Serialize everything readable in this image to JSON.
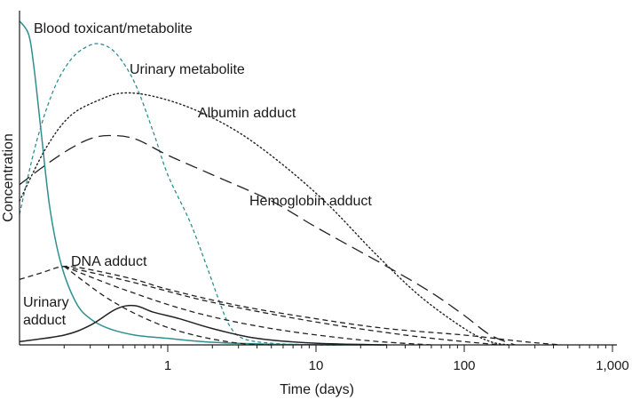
{
  "chart_data": {
    "type": "line",
    "xlabel": "Time (days)",
    "ylabel": "Concentration",
    "x_scale": "log",
    "xlim": [
      0.1,
      1000
    ],
    "ylim": [
      0,
      100
    ],
    "x_ticks": [
      {
        "value": 1,
        "label": "1"
      },
      {
        "value": 10,
        "label": "10"
      },
      {
        "value": 100,
        "label": "100"
      },
      {
        "value": 1000,
        "label": "1,000"
      }
    ],
    "grid": false,
    "legend": "none",
    "series": [
      {
        "name": "Blood toxicant/metabolite",
        "color": "#2f8f8f",
        "dash": "solid",
        "points": [
          [
            0.1,
            99
          ],
          [
            0.115,
            95
          ],
          [
            0.125,
            85
          ],
          [
            0.14,
            65
          ],
          [
            0.16,
            42
          ],
          [
            0.19,
            25
          ],
          [
            0.24,
            13
          ],
          [
            0.3,
            8
          ],
          [
            0.4,
            5
          ],
          [
            0.6,
            3
          ],
          [
            1.0,
            2
          ],
          [
            2.0,
            0.8
          ],
          [
            5.0,
            0.2
          ],
          [
            15.0,
            0
          ],
          [
            30.0,
            0
          ]
        ]
      },
      {
        "name": "Urinary metabolite",
        "color": "#2f8f8f",
        "dash": "short",
        "points": [
          [
            0.1,
            40
          ],
          [
            0.13,
            62
          ],
          [
            0.17,
            78
          ],
          [
            0.22,
            87
          ],
          [
            0.28,
            91
          ],
          [
            0.35,
            92
          ],
          [
            0.45,
            89
          ],
          [
            0.6,
            80
          ],
          [
            0.8,
            65
          ],
          [
            1.0,
            52
          ],
          [
            1.4,
            38
          ],
          [
            1.8,
            25
          ],
          [
            2.2,
            14
          ],
          [
            2.6,
            6
          ],
          [
            3.2,
            2
          ],
          [
            5.0,
            0.5
          ],
          [
            10.0,
            0
          ],
          [
            15.0,
            0
          ]
        ]
      },
      {
        "name": "Albumin adduct",
        "color": "#222222",
        "dash": "dot",
        "points": [
          [
            0.1,
            44
          ],
          [
            0.15,
            60
          ],
          [
            0.22,
            70
          ],
          [
            0.35,
            75
          ],
          [
            0.5,
            77
          ],
          [
            0.8,
            76
          ],
          [
            1.5,
            72
          ],
          [
            3.0,
            65
          ],
          [
            6.0,
            55
          ],
          [
            12.0,
            43
          ],
          [
            25.0,
            28
          ],
          [
            50.0,
            15
          ],
          [
            100.0,
            5
          ],
          [
            150.0,
            1
          ],
          [
            200.0,
            0
          ]
        ]
      },
      {
        "name": "Hemoglobin adduct",
        "color": "#222222",
        "dash": "long",
        "points": [
          [
            0.1,
            49
          ],
          [
            0.15,
            55
          ],
          [
            0.22,
            60
          ],
          [
            0.3,
            63
          ],
          [
            0.4,
            64
          ],
          [
            0.6,
            63
          ],
          [
            1.0,
            58
          ],
          [
            2.0,
            52
          ],
          [
            5.0,
            44
          ],
          [
            10.0,
            36
          ],
          [
            30.0,
            24
          ],
          [
            60.0,
            16
          ],
          [
            100.0,
            9
          ],
          [
            150.0,
            3
          ],
          [
            220.0,
            0
          ]
        ]
      },
      {
        "name": "DNA adduct",
        "color": "#222222",
        "dash": "medium",
        "points": [
          [
            0.1,
            20
          ],
          [
            0.14,
            22
          ],
          [
            0.2,
            24
          ],
          [
            0.3,
            23
          ],
          [
            0.6,
            20
          ],
          [
            1.0,
            17
          ],
          [
            3.0,
            12
          ],
          [
            10.0,
            8
          ],
          [
            30.0,
            5
          ],
          [
            100.0,
            3
          ],
          [
            250.0,
            1
          ],
          [
            450.0,
            0
          ]
        ]
      },
      {
        "name": "DNA adduct 2",
        "color": "#222222",
        "dash": "medium",
        "points": [
          [
            0.2,
            24
          ],
          [
            0.6,
            19
          ],
          [
            2.0,
            13
          ],
          [
            10.0,
            7
          ],
          [
            40.0,
            3
          ],
          [
            100.0,
            1
          ],
          [
            180.0,
            0
          ]
        ]
      },
      {
        "name": "DNA adduct 3",
        "color": "#222222",
        "dash": "medium",
        "points": [
          [
            0.2,
            24
          ],
          [
            0.5,
            17
          ],
          [
            1.5,
            10
          ],
          [
            5.0,
            5
          ],
          [
            20.0,
            1.5
          ],
          [
            60.0,
            0
          ]
        ]
      },
      {
        "name": "DNA adduct 4",
        "color": "#222222",
        "dash": "medium",
        "points": [
          [
            0.2,
            24
          ],
          [
            0.4,
            14
          ],
          [
            0.8,
            7
          ],
          [
            1.5,
            3
          ],
          [
            3.0,
            0.5
          ],
          [
            5.0,
            0
          ]
        ]
      },
      {
        "name": "Urinary adduct",
        "color": "#222222",
        "dash": "solid",
        "points": [
          [
            0.1,
            1
          ],
          [
            0.2,
            3
          ],
          [
            0.3,
            6
          ],
          [
            0.45,
            11
          ],
          [
            0.6,
            12
          ],
          [
            0.8,
            10
          ],
          [
            1.2,
            8
          ],
          [
            2.0,
            5
          ],
          [
            4.0,
            2
          ],
          [
            10.0,
            0.5
          ],
          [
            30.0,
            0
          ]
        ]
      }
    ],
    "annotations": [
      {
        "text": "Blood toxicant/metabolite",
        "series": "Blood toxicant/metabolite"
      },
      {
        "text": "Urinary metabolite",
        "series": "Urinary metabolite"
      },
      {
        "text": "Albumin adduct",
        "series": "Albumin adduct"
      },
      {
        "text": "Hemoglobin adduct",
        "series": "Hemoglobin adduct"
      },
      {
        "text": "DNA adduct",
        "series": "DNA adduct"
      },
      {
        "text": "Urinary",
        "series": "Urinary adduct"
      },
      {
        "text": "adduct",
        "series": "Urinary adduct"
      }
    ]
  }
}
